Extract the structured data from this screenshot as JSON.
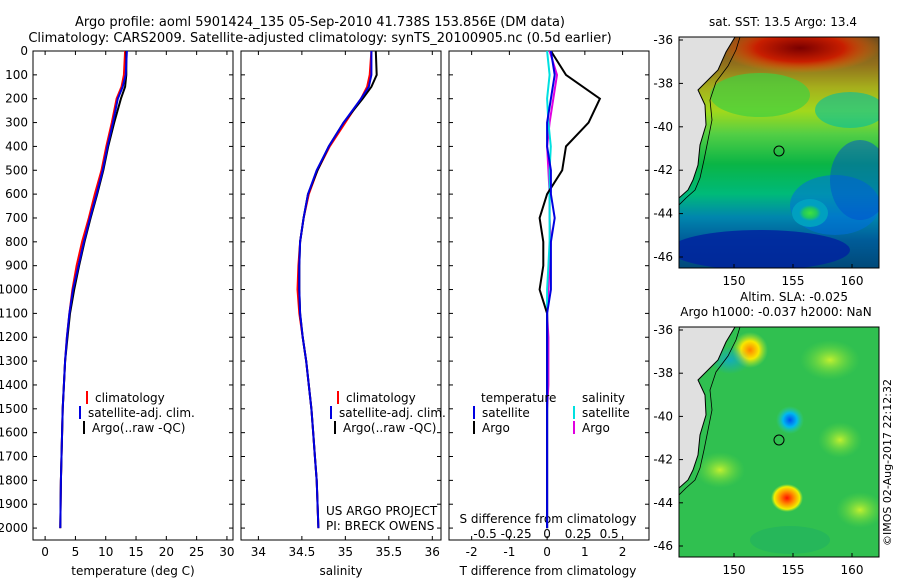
{
  "header": {
    "line1": "Argo profile: aoml 5901424_135 05-Sep-2010 41.738S 153.856E (DM data)",
    "line2": "Climatology: CARS2009. Satellite-adjusted climatology: synTS_20100905.nc (0.5d earlier)"
  },
  "depth_axis": {
    "range": [
      0,
      2050
    ],
    "ticks": [
      0,
      100,
      200,
      300,
      400,
      500,
      600,
      700,
      800,
      900,
      1000,
      1100,
      1200,
      1300,
      1400,
      1500,
      1600,
      1700,
      1800,
      1900,
      2000
    ]
  },
  "legend_profiles": {
    "clim": "climatology",
    "sat": "satellite-adj. clim.",
    "argo": "Argo(..raw -QC)"
  },
  "legend_diff": {
    "temp_title": "temperature",
    "sal_title": "salinity",
    "satellite": "satellite",
    "argo": "Argo"
  },
  "project": {
    "line1": "US ARGO PROJECT",
    "line2": "PI: BRECK OWENS"
  },
  "maps": {
    "sst": {
      "title": "sat. SST: 13.5 Argo: 13.4",
      "lat_ticks": [
        "-36",
        "-38",
        "-40",
        "-42",
        "-44",
        "-46"
      ],
      "lon_ticks": [
        "150",
        "155",
        "160"
      ]
    },
    "sla": {
      "title1": "Altim. SLA: -0.025",
      "title2": "Argo h1000: -0.037 h2000: NaN",
      "lat_ticks": [
        "-36",
        "-38",
        "-40",
        "-42",
        "-44",
        "-46"
      ],
      "lon_ticks": [
        "150",
        "155",
        "160"
      ]
    },
    "credit": "©IMOS 02-Aug-2017 22:12:32"
  },
  "colors": {
    "clim": "#ff0000",
    "sat_t": "#0000e0",
    "argo": "#000000",
    "sat_s": "#00e0e0",
    "argo_s": "#e000e0"
  },
  "chart_data": [
    {
      "type": "line",
      "title": "",
      "xlabel": "temperature (deg C)",
      "ylabel": "depth",
      "xlim": [
        -2,
        31
      ],
      "ylim": [
        2050,
        0
      ],
      "xticks": [
        0,
        5,
        10,
        15,
        20,
        25,
        30
      ],
      "series": [
        {
          "name": "climatology",
          "x": [
            13.2,
            13.0,
            12.6,
            11.8,
            11.0,
            10.1,
            9.3,
            8.2,
            7.2,
            6.1,
            5.2,
            4.5,
            4.0,
            3.6,
            3.3,
            3.1,
            2.9,
            2.8,
            2.7,
            2.6,
            2.5
          ],
          "depth": [
            0,
            100,
            150,
            200,
            300,
            400,
            500,
            600,
            700,
            800,
            900,
            1000,
            1100,
            1200,
            1300,
            1400,
            1500,
            1600,
            1700,
            1800,
            2000
          ]
        },
        {
          "name": "satellite-adj. clim.",
          "x": [
            13.5,
            13.3,
            12.8,
            12.0,
            11.2,
            10.3,
            9.5,
            8.5,
            7.4,
            6.4,
            5.5,
            4.6,
            4.0,
            3.6,
            3.3,
            3.1,
            2.9,
            2.8,
            2.7,
            2.6,
            2.5
          ],
          "depth": [
            0,
            100,
            150,
            200,
            300,
            400,
            500,
            600,
            700,
            800,
            900,
            1000,
            1100,
            1200,
            1300,
            1400,
            1500,
            1600,
            1700,
            1800,
            2000
          ]
        },
        {
          "name": "Argo(..raw -QC)",
          "x": [
            13.4,
            13.4,
            13.2,
            12.5,
            11.4,
            10.4,
            9.6,
            8.6,
            7.5,
            6.5,
            5.6,
            4.8,
            4.1,
            3.7,
            3.3,
            3.1,
            2.9,
            2.8,
            2.7,
            2.6,
            2.5
          ],
          "depth": [
            0,
            100,
            150,
            200,
            300,
            400,
            500,
            600,
            700,
            800,
            900,
            1000,
            1100,
            1200,
            1300,
            1400,
            1500,
            1600,
            1700,
            1800,
            2000
          ]
        }
      ]
    },
    {
      "type": "line",
      "title": "",
      "xlabel": "salinity",
      "ylabel": "depth",
      "xlim": [
        33.8,
        36.1
      ],
      "ylim": [
        2050,
        0
      ],
      "xticks": [
        34,
        34.5,
        35,
        35.5,
        36
      ],
      "series": [
        {
          "name": "climatology",
          "x": [
            35.3,
            35.28,
            35.25,
            35.18,
            35.0,
            34.82,
            34.68,
            34.58,
            34.52,
            34.48,
            34.46,
            34.45,
            34.47,
            34.51,
            34.55,
            34.58,
            34.61,
            34.63,
            34.65,
            34.67,
            34.69
          ],
          "depth": [
            0,
            100,
            150,
            200,
            300,
            400,
            500,
            600,
            700,
            800,
            900,
            1000,
            1100,
            1200,
            1300,
            1400,
            1500,
            1600,
            1700,
            1800,
            2000
          ]
        },
        {
          "name": "satellite-adj. clim.",
          "x": [
            35.3,
            35.3,
            35.27,
            35.18,
            34.98,
            34.81,
            34.67,
            34.57,
            34.52,
            34.48,
            34.47,
            34.47,
            34.48,
            34.51,
            34.55,
            34.58,
            34.61,
            34.63,
            34.65,
            34.67,
            34.69
          ],
          "depth": [
            0,
            100,
            150,
            200,
            300,
            400,
            500,
            600,
            700,
            800,
            900,
            1000,
            1100,
            1200,
            1300,
            1400,
            1500,
            1600,
            1700,
            1800,
            2000
          ]
        },
        {
          "name": "Argo(..raw -QC)",
          "x": [
            35.35,
            35.36,
            35.3,
            35.2,
            34.98,
            34.81,
            34.68,
            34.57,
            34.52,
            34.48,
            34.47,
            34.47,
            34.48,
            34.51,
            34.55,
            34.58,
            34.61,
            34.63,
            34.65,
            34.67,
            34.69
          ],
          "depth": [
            0,
            100,
            150,
            200,
            300,
            400,
            500,
            600,
            700,
            800,
            900,
            1000,
            1100,
            1200,
            1300,
            1400,
            1500,
            1600,
            1700,
            1800,
            2000
          ]
        }
      ]
    },
    {
      "type": "line",
      "title": "",
      "xlabel": "T difference from climatology",
      "ylabel": "depth",
      "top_label": "S difference from climatology",
      "xlim": [
        -2.6,
        2.7
      ],
      "ylim": [
        2050,
        0
      ],
      "xticks": [
        -2,
        -1,
        0,
        1,
        2
      ],
      "xticklabels": [
        "-2",
        "-1",
        "0",
        "1",
        "2"
      ],
      "sticks": [
        -0.5,
        -0.25,
        0,
        0.25,
        0.5
      ],
      "sticklabels": [
        "-0.5",
        "-0.25",
        "0",
        "0.25",
        "0.5"
      ],
      "series": [
        {
          "name": "temperature satellite",
          "axis": "T",
          "x": [
            0.1,
            0.2,
            0.1,
            0.0,
            0.0,
            0.1,
            0.1,
            0.2,
            0.1,
            0.1,
            0.1,
            0.0,
            0.0,
            0.0,
            0.0,
            0.0,
            0.0,
            0.0,
            0.0,
            0.0,
            0.0
          ],
          "depth": [
            0,
            100,
            200,
            300,
            400,
            500,
            600,
            700,
            800,
            900,
            1000,
            1100,
            1200,
            1300,
            1400,
            1500,
            1600,
            1700,
            1800,
            1900,
            2000
          ]
        },
        {
          "name": "temperature Argo",
          "axis": "T",
          "x": [
            0.1,
            0.5,
            1.4,
            1.1,
            0.5,
            0.4,
            0.0,
            -0.2,
            -0.1,
            -0.1,
            -0.2,
            0.0,
            0.0,
            0.0,
            0.0,
            0.0,
            0.0,
            0.0,
            0.0,
            0.0,
            0.0
          ],
          "depth": [
            0,
            100,
            200,
            300,
            400,
            500,
            600,
            700,
            800,
            900,
            1000,
            1100,
            1200,
            1300,
            1400,
            1500,
            1600,
            1700,
            1800,
            1900,
            2000
          ]
        },
        {
          "name": "salinity satellite",
          "axis": "S",
          "x": [
            0.0,
            0.02,
            0.0,
            0.01,
            0.03,
            0.02,
            0.02,
            0.02,
            0.02,
            0.01,
            0.0,
            0.0,
            0.0,
            0.0,
            0.0,
            0.0,
            0.0,
            0.0,
            0.0,
            0.0,
            0.0
          ],
          "depth": [
            0,
            100,
            200,
            300,
            400,
            500,
            600,
            700,
            800,
            900,
            1000,
            1100,
            1200,
            1300,
            1400,
            1500,
            1600,
            1700,
            1800,
            1900,
            2000
          ]
        },
        {
          "name": "salinity Argo",
          "axis": "S",
          "x": [
            0.02,
            0.08,
            0.05,
            0.02,
            0.0,
            0.01,
            0.02,
            0.02,
            0.03,
            0.02,
            0.01,
            0.0,
            0.01,
            0.01,
            0.01,
            0.0,
            0.0,
            0.0,
            0.0,
            0.0,
            0.0
          ],
          "depth": [
            0,
            100,
            200,
            300,
            400,
            500,
            600,
            700,
            800,
            900,
            1000,
            1100,
            1200,
            1300,
            1400,
            1500,
            1600,
            1700,
            1800,
            1900,
            2000
          ]
        }
      ]
    }
  ]
}
